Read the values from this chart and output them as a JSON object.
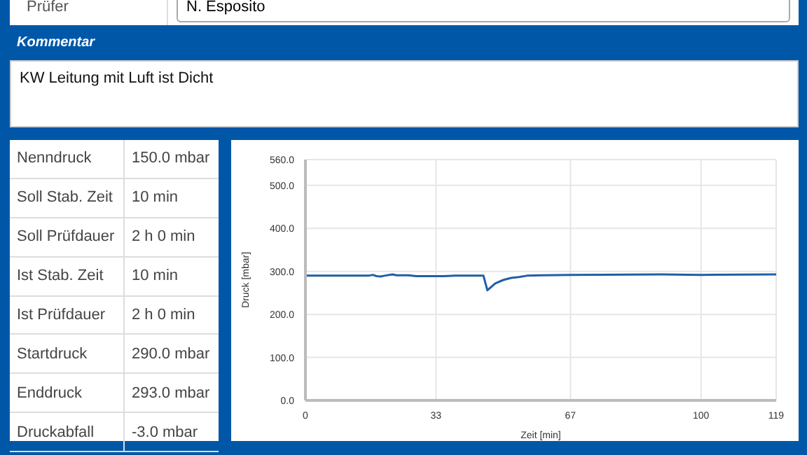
{
  "chart_data": {
    "type": "line",
    "xlabel": "Zeit [min]",
    "ylabel": "Druck [mbar]",
    "annotations": [
      "Prüfer",
      "N. Esposito",
      "Kommentar",
      "KW Leitung mit Luft ist Dicht",
      "Nenndruck",
      "150.0 mbar",
      "Soll Stab. Zeit",
      "10 min",
      "Soll Prüfdauer",
      "2 h 0 min",
      "Ist Stab. Zeit",
      "10 min",
      "Ist Prüfdauer",
      "2 h 0 min",
      "Startdruck",
      "290.0 mbar",
      "Enddruck",
      "293.0 mbar",
      "Druckabfall",
      "-3.0 mbar"
    ],
    "x": [
      0,
      16,
      17,
      18,
      19,
      20,
      22,
      23,
      26,
      28,
      35,
      38,
      45,
      46,
      48,
      50,
      52,
      54,
      56,
      60,
      67,
      90,
      100,
      119
    ],
    "series": [
      {
        "color": "#1f5fa8",
        "values": [
          290,
          290,
          292,
          289,
          288,
          290,
          293,
          291,
          291,
          289,
          289,
          290,
          290,
          256,
          272,
          280,
          285,
          287,
          290,
          291,
          292,
          293,
          292,
          293
        ]
      }
    ],
    "xlim": [
      0,
      119
    ],
    "xticks": [
      0,
      33,
      67,
      100,
      119
    ],
    "ylim": [
      0,
      560
    ],
    "yticks": [
      {
        "value": 0,
        "label": "0.0"
      },
      {
        "value": 100,
        "label": "100.0"
      },
      {
        "value": 200,
        "label": "200.0"
      },
      {
        "value": 300,
        "label": "300.0"
      },
      {
        "value": 400,
        "label": "400.0"
      },
      {
        "value": 500,
        "label": "500.0"
      },
      {
        "value": 560,
        "label": "560.0"
      }
    ],
    "grid": true,
    "legend": false,
    "marker": "none",
    "line_style": "solid"
  }
}
